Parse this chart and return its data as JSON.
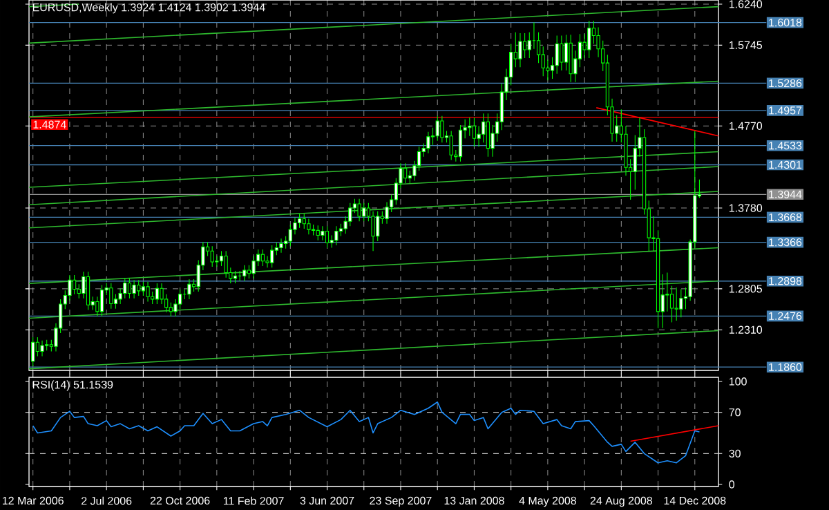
{
  "chart_data": [
    {
      "type": "candlestick",
      "title": "EURUSD,Weekly 1.3924 1.4124 1.3902 1.3944",
      "color": "#00ff00",
      "x": [
        "2006-03-12",
        "2006-03-19",
        "2006-03-26",
        "2006-04-02",
        "2006-04-09",
        "2006-04-16",
        "2006-04-23",
        "2006-04-30",
        "2006-05-07",
        "2006-05-14",
        "2006-05-21",
        "2006-05-28",
        "2006-06-04",
        "2006-06-11",
        "2006-06-18",
        "2006-06-25",
        "2006-07-02",
        "2006-07-09",
        "2006-07-16",
        "2006-07-23",
        "2006-07-30",
        "2006-08-06",
        "2006-08-13",
        "2006-08-20",
        "2006-08-27",
        "2006-09-03",
        "2006-09-10",
        "2006-09-17",
        "2006-09-24",
        "2006-10-01",
        "2006-10-08",
        "2006-10-15",
        "2006-10-22",
        "2006-10-29",
        "2006-11-05",
        "2006-11-12",
        "2006-11-19",
        "2006-11-26",
        "2006-12-03",
        "2006-12-10",
        "2006-12-17",
        "2006-12-24",
        "2006-12-31",
        "2007-01-07",
        "2007-01-14",
        "2007-01-21",
        "2007-01-28",
        "2007-02-04",
        "2007-02-11",
        "2007-02-18",
        "2007-02-25",
        "2007-03-04",
        "2007-03-11",
        "2007-03-18",
        "2007-03-25",
        "2007-04-01",
        "2007-04-08",
        "2007-04-15",
        "2007-04-22",
        "2007-04-29",
        "2007-05-06",
        "2007-05-13",
        "2007-05-20",
        "2007-05-27",
        "2007-06-03",
        "2007-06-10",
        "2007-06-17",
        "2007-06-24",
        "2007-07-01",
        "2007-07-08",
        "2007-07-15",
        "2007-07-22",
        "2007-07-29",
        "2007-08-05",
        "2007-08-12",
        "2007-08-19",
        "2007-08-26",
        "2007-09-02",
        "2007-09-09",
        "2007-09-16",
        "2007-09-23",
        "2007-09-30",
        "2007-10-07",
        "2007-10-14",
        "2007-10-21",
        "2007-10-28",
        "2007-11-04",
        "2007-11-11",
        "2007-11-18",
        "2007-11-25",
        "2007-12-02",
        "2007-12-09",
        "2007-12-16",
        "2007-12-23",
        "2007-12-30",
        "2008-01-06",
        "2008-01-13",
        "2008-01-20",
        "2008-01-27",
        "2008-02-03",
        "2008-02-10",
        "2008-02-17",
        "2008-02-24",
        "2008-03-02",
        "2008-03-09",
        "2008-03-16",
        "2008-03-23",
        "2008-03-30",
        "2008-04-06",
        "2008-04-13",
        "2008-04-20",
        "2008-04-27",
        "2008-05-04",
        "2008-05-11",
        "2008-05-18",
        "2008-05-25",
        "2008-06-01",
        "2008-06-08",
        "2008-06-15",
        "2008-06-22",
        "2008-06-29",
        "2008-07-06",
        "2008-07-13",
        "2008-07-20",
        "2008-07-27",
        "2008-08-03",
        "2008-08-10",
        "2008-08-17",
        "2008-08-24",
        "2008-08-31",
        "2008-09-07",
        "2008-09-14",
        "2008-09-21",
        "2008-09-28",
        "2008-10-05",
        "2008-10-12",
        "2008-10-19",
        "2008-10-26",
        "2008-11-02",
        "2008-11-09",
        "2008-11-16",
        "2008-11-23",
        "2008-11-30",
        "2008-12-07",
        "2008-12-14",
        "2008-12-21"
      ],
      "ohlc": [
        [
          1.193,
          1.222,
          1.187,
          1.216
        ],
        [
          1.216,
          1.222,
          1.199,
          1.205
        ],
        [
          1.205,
          1.218,
          1.199,
          1.212
        ],
        [
          1.212,
          1.219,
          1.206,
          1.213
        ],
        [
          1.213,
          1.219,
          1.205,
          1.211
        ],
        [
          1.211,
          1.239,
          1.205,
          1.233
        ],
        [
          1.233,
          1.268,
          1.227,
          1.262
        ],
        [
          1.262,
          1.2785,
          1.256,
          1.2725
        ],
        [
          1.2725,
          1.297,
          1.2665,
          1.291
        ],
        [
          1.291,
          1.297,
          1.274,
          1.28
        ],
        [
          1.28,
          1.286,
          1.269,
          1.275
        ],
        [
          1.275,
          1.301,
          1.269,
          1.295
        ],
        [
          1.295,
          1.301,
          1.255,
          1.261
        ],
        [
          1.261,
          1.271,
          1.255,
          1.265
        ],
        [
          1.265,
          1.271,
          1.247,
          1.253
        ],
        [
          1.253,
          1.285,
          1.247,
          1.279
        ],
        [
          1.279,
          1.2875,
          1.273,
          1.2815
        ],
        [
          1.2815,
          1.2875,
          1.2565,
          1.2625
        ],
        [
          1.2625,
          1.274,
          1.2565,
          1.268
        ],
        [
          1.268,
          1.281,
          1.262,
          1.275
        ],
        [
          1.275,
          1.2935,
          1.269,
          1.2875
        ],
        [
          1.2875,
          1.2935,
          1.269,
          1.275
        ],
        [
          1.275,
          1.291,
          1.269,
          1.285
        ],
        [
          1.285,
          1.291,
          1.272,
          1.278
        ],
        [
          1.278,
          1.289,
          1.272,
          1.283
        ],
        [
          1.283,
          1.289,
          1.265,
          1.271
        ],
        [
          1.271,
          1.277,
          1.262,
          1.268
        ],
        [
          1.268,
          1.287,
          1.262,
          1.281
        ],
        [
          1.281,
          1.287,
          1.262,
          1.268
        ],
        [
          1.268,
          1.274,
          1.252,
          1.258
        ],
        [
          1.258,
          1.264,
          1.247,
          1.253
        ],
        [
          1.253,
          1.268,
          1.247,
          1.262
        ],
        [
          1.262,
          1.28,
          1.256,
          1.274
        ],
        [
          1.274,
          1.28,
          1.268,
          1.274
        ],
        [
          1.274,
          1.292,
          1.268,
          1.286
        ],
        [
          1.286,
          1.292,
          1.277,
          1.283
        ],
        [
          1.283,
          1.315,
          1.277,
          1.309
        ],
        [
          1.309,
          1.337,
          1.303,
          1.331
        ],
        [
          1.331,
          1.337,
          1.32,
          1.326
        ],
        [
          1.326,
          1.332,
          1.307,
          1.313
        ],
        [
          1.313,
          1.32,
          1.307,
          1.314
        ],
        [
          1.314,
          1.326,
          1.308,
          1.32
        ],
        [
          1.32,
          1.326,
          1.294,
          1.3
        ],
        [
          1.3,
          1.306,
          1.287,
          1.293
        ],
        [
          1.293,
          1.302,
          1.287,
          1.296
        ],
        [
          1.296,
          1.302,
          1.29,
          1.296
        ],
        [
          1.296,
          1.309,
          1.29,
          1.303
        ],
        [
          1.303,
          1.309,
          1.293,
          1.299
        ],
        [
          1.299,
          1.32,
          1.293,
          1.314
        ],
        [
          1.314,
          1.328,
          1.308,
          1.322
        ],
        [
          1.322,
          1.328,
          1.308,
          1.314
        ],
        [
          1.314,
          1.32,
          1.306,
          1.312
        ],
        [
          1.312,
          1.333,
          1.306,
          1.327
        ],
        [
          1.327,
          1.336,
          1.321,
          1.33
        ],
        [
          1.33,
          1.341,
          1.324,
          1.335
        ],
        [
          1.335,
          1.344,
          1.329,
          1.338
        ],
        [
          1.338,
          1.358,
          1.332,
          1.352
        ],
        [
          1.352,
          1.366,
          1.346,
          1.36
        ],
        [
          1.36,
          1.371,
          1.354,
          1.365
        ],
        [
          1.365,
          1.371,
          1.353,
          1.359
        ],
        [
          1.359,
          1.365,
          1.346,
          1.352
        ],
        [
          1.352,
          1.358,
          1.345,
          1.351
        ],
        [
          1.351,
          1.357,
          1.339,
          1.345
        ],
        [
          1.345,
          1.356,
          1.339,
          1.35
        ],
        [
          1.35,
          1.356,
          1.33,
          1.336
        ],
        [
          1.336,
          1.345,
          1.33,
          1.339
        ],
        [
          1.339,
          1.356,
          1.333,
          1.35
        ],
        [
          1.35,
          1.359,
          1.344,
          1.353
        ],
        [
          1.353,
          1.368,
          1.347,
          1.362
        ],
        [
          1.362,
          1.384,
          1.356,
          1.378
        ],
        [
          1.378,
          1.389,
          1.372,
          1.383
        ],
        [
          1.383,
          1.389,
          1.362,
          1.368
        ],
        [
          1.368,
          1.384,
          1.362,
          1.378
        ],
        [
          1.378,
          1.384,
          1.362,
          1.368
        ],
        [
          1.368,
          1.374,
          1.326,
          1.344
        ],
        [
          1.344,
          1.374,
          1.338,
          1.368
        ],
        [
          1.368,
          1.374,
          1.359,
          1.365
        ],
        [
          1.365,
          1.385,
          1.359,
          1.379
        ],
        [
          1.379,
          1.394,
          1.373,
          1.388
        ],
        [
          1.388,
          1.414,
          1.382,
          1.408
        ],
        [
          1.408,
          1.432,
          1.402,
          1.426
        ],
        [
          1.426,
          1.432,
          1.408,
          1.414
        ],
        [
          1.414,
          1.423,
          1.408,
          1.417
        ],
        [
          1.417,
          1.435,
          1.411,
          1.429
        ],
        [
          1.429,
          1.452,
          1.423,
          1.446
        ],
        [
          1.446,
          1.456,
          1.44,
          1.45
        ],
        [
          1.45,
          1.47,
          1.444,
          1.464
        ],
        [
          1.464,
          1.475,
          1.454,
          1.465
        ],
        [
          1.465,
          1.489,
          1.459,
          1.483
        ],
        [
          1.483,
          1.489,
          1.457,
          1.463
        ],
        [
          1.463,
          1.471,
          1.457,
          1.465
        ],
        [
          1.465,
          1.471,
          1.436,
          1.442
        ],
        [
          1.442,
          1.448,
          1.434,
          1.44
        ],
        [
          1.44,
          1.478,
          1.434,
          1.472
        ],
        [
          1.472,
          1.485,
          1.462,
          1.475
        ],
        [
          1.475,
          1.487,
          1.465,
          1.477
        ],
        [
          1.477,
          1.487,
          1.452,
          1.462
        ],
        [
          1.462,
          1.477,
          1.452,
          1.467
        ],
        [
          1.467,
          1.492,
          1.457,
          1.482
        ],
        [
          1.482,
          1.492,
          1.44,
          1.45
        ],
        [
          1.45,
          1.478,
          1.44,
          1.468
        ],
        [
          1.468,
          1.492,
          1.458,
          1.482
        ],
        [
          1.482,
          1.528,
          1.472,
          1.518
        ],
        [
          1.518,
          1.546,
          1.508,
          1.536
        ],
        [
          1.536,
          1.576,
          1.526,
          1.566
        ],
        [
          1.566,
          1.59,
          1.548,
          1.558
        ],
        [
          1.558,
          1.589,
          1.548,
          1.579
        ],
        [
          1.579,
          1.589,
          1.559,
          1.569
        ],
        [
          1.569,
          1.59,
          1.559,
          1.58
        ],
        [
          1.58,
          1.602,
          1.57,
          1.58
        ],
        [
          1.58,
          1.59,
          1.553,
          1.563
        ],
        [
          1.563,
          1.573,
          1.537,
          1.547
        ],
        [
          1.547,
          1.557,
          1.532,
          1.544
        ],
        [
          1.544,
          1.56,
          1.534,
          1.55
        ],
        [
          1.55,
          1.586,
          1.54,
          1.576
        ],
        [
          1.576,
          1.586,
          1.544,
          1.554
        ],
        [
          1.554,
          1.587,
          1.544,
          1.577
        ],
        [
          1.577,
          1.587,
          1.53,
          1.54
        ],
        [
          1.54,
          1.568,
          1.53,
          1.558
        ],
        [
          1.558,
          1.588,
          1.548,
          1.578
        ],
        [
          1.578,
          1.588,
          1.559,
          1.569
        ],
        [
          1.569,
          1.604,
          1.559,
          1.595
        ],
        [
          1.595,
          1.6038,
          1.576,
          1.586
        ],
        [
          1.586,
          1.596,
          1.56,
          1.57
        ],
        [
          1.57,
          1.58,
          1.543,
          1.553
        ],
        [
          1.553,
          1.563,
          1.49,
          1.5
        ],
        [
          1.5,
          1.51,
          1.458,
          1.468
        ],
        [
          1.468,
          1.49,
          1.458,
          1.477
        ],
        [
          1.477,
          1.497,
          1.457,
          1.467
        ],
        [
          1.467,
          1.477,
          1.417,
          1.427
        ],
        [
          1.427,
          1.437,
          1.388,
          1.422
        ],
        [
          1.422,
          1.466,
          1.4,
          1.45
        ],
        [
          1.45,
          1.487,
          1.44,
          1.463
        ],
        [
          1.463,
          1.473,
          1.37,
          1.377
        ],
        [
          1.377,
          1.387,
          1.326,
          1.342
        ],
        [
          1.342,
          1.368,
          1.326,
          1.341
        ],
        [
          1.341,
          1.351,
          1.233,
          1.253
        ],
        [
          1.253,
          1.298,
          1.233,
          1.273
        ],
        [
          1.273,
          1.3,
          1.253,
          1.274
        ],
        [
          1.274,
          1.284,
          1.24,
          1.257
        ],
        [
          1.257,
          1.282,
          1.242,
          1.256
        ],
        [
          1.256,
          1.28,
          1.246,
          1.269
        ],
        [
          1.269,
          1.282,
          1.256,
          1.271
        ],
        [
          1.271,
          1.34,
          1.266,
          1.337
        ],
        [
          1.337,
          1.471,
          1.33,
          1.393
        ],
        [
          1.3924,
          1.4124,
          1.3902,
          1.3944
        ]
      ],
      "series": [
        {
          "type": "line",
          "color": "#2eb82e",
          "x": [
            "2006-03-06",
            "2006-05-21"
          ],
          "values": [
            1.621,
            1.624
          ]
        },
        {
          "type": "line",
          "color": "#2eb82e",
          "x": [
            "2006-03-06",
            "2009-01-19"
          ],
          "values": [
            1.577,
            1.621
          ]
        },
        {
          "type": "line",
          "color": "#2eb82e",
          "x": [
            "2006-03-06",
            "2009-01-19"
          ],
          "values": [
            1.488,
            1.531
          ]
        },
        {
          "type": "line",
          "color": "#2eb82e",
          "x": [
            "2006-03-06",
            "2009-01-19"
          ],
          "values": [
            1.403,
            1.446
          ]
        },
        {
          "type": "line",
          "color": "#2eb82e",
          "x": [
            "2006-03-06",
            "2009-01-19"
          ],
          "values": [
            1.382,
            1.428
          ]
        },
        {
          "type": "line",
          "color": "#2eb82e",
          "x": [
            "2006-03-06",
            "2009-01-19"
          ],
          "values": [
            1.354,
            1.398
          ]
        },
        {
          "type": "line",
          "color": "#2eb82e",
          "x": [
            "2006-03-06",
            "2009-01-19"
          ],
          "values": [
            1.287,
            1.33
          ]
        },
        {
          "type": "line",
          "color": "#2eb82e",
          "x": [
            "2006-03-06",
            "2009-01-19"
          ],
          "values": [
            1.245,
            1.29
          ]
        },
        {
          "type": "line",
          "color": "#2eb82e",
          "x": [
            "2006-03-06",
            "2009-01-19"
          ],
          "values": [
            1.184,
            1.23
          ]
        },
        {
          "type": "line",
          "color": "#ff0000",
          "x": [
            "2008-07-17",
            "2009-01-19"
          ],
          "values": [
            1.499,
            1.465
          ]
        }
      ],
      "xlim": [
        "2006-03-06",
        "2009-01-19"
      ],
      "ylim": [
        1.182,
        1.629
      ],
      "xticks": [
        {
          "value": "2006-03-12",
          "label": null
        },
        {
          "value": "2006-05-07",
          "label": null
        },
        {
          "value": "2006-07-02",
          "label": null
        },
        {
          "value": "2006-08-27",
          "label": null
        },
        {
          "value": "2006-10-22",
          "label": null
        },
        {
          "value": "2006-12-17",
          "label": null
        },
        {
          "value": "2007-02-11",
          "label": null
        },
        {
          "value": "2007-04-08",
          "label": null
        },
        {
          "value": "2007-06-03",
          "label": null
        },
        {
          "value": "2007-07-29",
          "label": null
        },
        {
          "value": "2007-09-23",
          "label": null
        },
        {
          "value": "2007-11-18",
          "label": null
        },
        {
          "value": "2008-01-13",
          "label": null
        },
        {
          "value": "2008-03-09",
          "label": null
        },
        {
          "value": "2008-05-04",
          "label": null
        },
        {
          "value": "2008-06-29",
          "label": null
        },
        {
          "value": "2008-08-24",
          "label": null
        },
        {
          "value": "2008-10-19",
          "label": null
        },
        {
          "value": "2008-12-14",
          "label": null
        }
      ],
      "yticks": [
        {
          "value": 1.624,
          "label": "1.6240"
        },
        {
          "value": 1.5745,
          "label": "1.5745"
        },
        {
          "value": 1.477,
          "label": "1.4770"
        },
        {
          "value": 1.378,
          "label": "1.3780"
        },
        {
          "value": 1.2805,
          "label": "1.2805"
        },
        {
          "value": 1.231,
          "label": "1.2310"
        }
      ],
      "grid": true,
      "tick_labels": "y",
      "ref_lines": [
        {
          "axis": "y",
          "value": 1.6018,
          "label": "1.6018",
          "color": "#4682b4"
        },
        {
          "axis": "y",
          "value": 1.5286,
          "label": "1.5286",
          "color": "#4682b4"
        },
        {
          "axis": "y",
          "value": 1.4957,
          "label": "1.4957",
          "color": "#4682b4"
        },
        {
          "axis": "y",
          "value": 1.4874,
          "label": "1.4874",
          "color": "#ff0000"
        },
        {
          "axis": "y",
          "value": 1.4533,
          "label": "1.4533",
          "color": "#4682b4"
        },
        {
          "axis": "y",
          "value": 1.4301,
          "label": "1.4301",
          "color": "#4682b4"
        },
        {
          "axis": "y",
          "value": 1.3944,
          "label": "1.3944",
          "color": "#909090"
        },
        {
          "axis": "y",
          "value": 1.3668,
          "label": "1.3668",
          "color": "#4682b4"
        },
        {
          "axis": "y",
          "value": 1.3366,
          "label": "1.3366",
          "color": "#4682b4"
        },
        {
          "axis": "y",
          "value": 1.2898,
          "label": "1.2898",
          "color": "#4682b4"
        },
        {
          "axis": "y",
          "value": 1.2476,
          "label": "1.2476",
          "color": "#4682b4"
        },
        {
          "axis": "y",
          "value": 1.186,
          "label": "1.1860",
          "color": "#4682b4"
        }
      ]
    },
    {
      "type": "line",
      "title": "RSI(14) 51.1539",
      "series": [
        {
          "color": "#1e90ff",
          "x": [
            "2006-03-12",
            "2006-03-19",
            "2006-04-09",
            "2006-04-23",
            "2006-05-07",
            "2006-05-14",
            "2006-05-28",
            "2006-06-04",
            "2006-06-18",
            "2006-07-02",
            "2006-07-09",
            "2006-07-23",
            "2006-08-06",
            "2006-08-20",
            "2006-09-03",
            "2006-09-17",
            "2006-10-08",
            "2006-10-22",
            "2006-10-29",
            "2006-11-12",
            "2006-11-26",
            "2006-12-10",
            "2006-12-24",
            "2007-01-07",
            "2007-01-21",
            "2007-02-11",
            "2007-02-25",
            "2007-03-04",
            "2007-03-11",
            "2007-04-01",
            "2007-04-22",
            "2007-05-06",
            "2007-06-03",
            "2007-06-24",
            "2007-07-08",
            "2007-07-22",
            "2007-08-05",
            "2007-08-12",
            "2007-08-19",
            "2007-09-09",
            "2007-09-23",
            "2007-10-14",
            "2007-11-04",
            "2007-11-18",
            "2007-11-25",
            "2007-12-16",
            "2007-12-23",
            "2008-01-06",
            "2008-01-13",
            "2008-01-27",
            "2008-02-03",
            "2008-02-24",
            "2008-03-09",
            "2008-03-16",
            "2008-03-23",
            "2008-04-13",
            "2008-04-27",
            "2008-05-18",
            "2008-05-25",
            "2008-06-08",
            "2008-06-15",
            "2008-07-06",
            "2008-07-13",
            "2008-08-03",
            "2008-08-10",
            "2008-08-24",
            "2008-08-31",
            "2008-09-14",
            "2008-09-28",
            "2008-10-19",
            "2008-11-02",
            "2008-11-16",
            "2008-11-30",
            "2008-12-14",
            "2008-12-21"
          ],
          "values": [
            57,
            50,
            52,
            65,
            71,
            65,
            66,
            59,
            57,
            62,
            56,
            59,
            54,
            57,
            52,
            56,
            47,
            52,
            57,
            57,
            69,
            59,
            63,
            52,
            52,
            59,
            61,
            57,
            65,
            68,
            72,
            65,
            56,
            63,
            72,
            61,
            65,
            50,
            59,
            65,
            72,
            68,
            74,
            80,
            70,
            59,
            68,
            68,
            62,
            65,
            54,
            70,
            74,
            68,
            72,
            71,
            59,
            63,
            57,
            54,
            61,
            62,
            57,
            41,
            37,
            39,
            32,
            41,
            30,
            21,
            23,
            21,
            28,
            52,
            51
          ]
        },
        {
          "color": "#ff0000",
          "x": [
            "2008-09-07",
            "2009-01-19"
          ],
          "values": [
            42,
            57
          ]
        }
      ],
      "xlim": [
        "2006-03-06",
        "2009-01-19"
      ],
      "ylim": [
        -2,
        104
      ],
      "xticks": [
        {
          "value": "2006-03-12",
          "label": "12 Mar 2006"
        },
        {
          "value": "2006-05-07",
          "label": null
        },
        {
          "value": "2006-07-02",
          "label": "2 Jul 2006"
        },
        {
          "value": "2006-08-27",
          "label": null
        },
        {
          "value": "2006-10-22",
          "label": "22 Oct 2006"
        },
        {
          "value": "2006-12-17",
          "label": null
        },
        {
          "value": "2007-02-11",
          "label": "11 Feb 2007"
        },
        {
          "value": "2007-04-08",
          "label": null
        },
        {
          "value": "2007-06-03",
          "label": "3 Jun 2007"
        },
        {
          "value": "2007-07-29",
          "label": null
        },
        {
          "value": "2007-09-23",
          "label": "23 Sep 2007"
        },
        {
          "value": "2007-11-18",
          "label": null
        },
        {
          "value": "2008-01-13",
          "label": "13 Jan 2008"
        },
        {
          "value": "2008-03-09",
          "label": null
        },
        {
          "value": "2008-05-04",
          "label": "4 May 2008"
        },
        {
          "value": "2008-06-29",
          "label": null
        },
        {
          "value": "2008-08-24",
          "label": "24 Aug 2008"
        },
        {
          "value": "2008-10-19",
          "label": null
        },
        {
          "value": "2008-12-14",
          "label": "14 Dec 2008"
        }
      ],
      "yticks": [
        0,
        30,
        70,
        100
      ],
      "grid": "x",
      "ref_lines": [
        {
          "axis": "y",
          "value": 30,
          "color": "#c0c0c0",
          "line_style": "dashed"
        },
        {
          "axis": "y",
          "value": 70,
          "color": "#c0c0c0",
          "line_style": "dashed"
        }
      ]
    }
  ]
}
